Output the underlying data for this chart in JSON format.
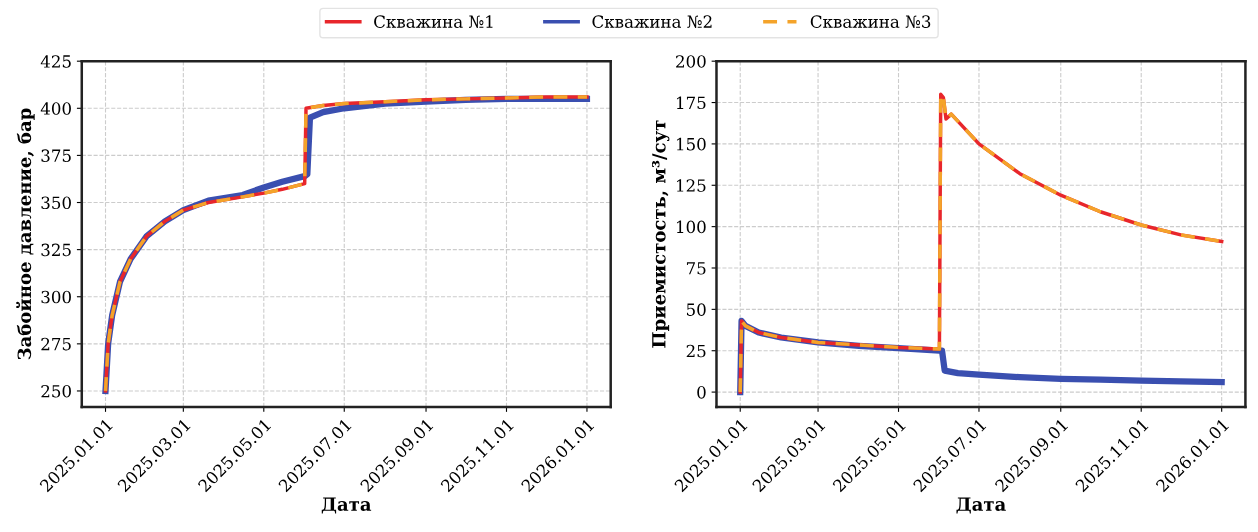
{
  "chart_data": [
    {
      "type": "line",
      "xlabel": "Дата",
      "ylabel": "Забойное давление, бар",
      "legend": "top",
      "grid": true,
      "xlim": [
        "2024-12-14",
        "2026-01-19"
      ],
      "ylim": [
        241.5,
        425
      ],
      "xticks": [
        {
          "value": "2025-01-01",
          "label": "2025.01.01"
        },
        {
          "value": "2025-03-01",
          "label": "2025.03.01"
        },
        {
          "value": "2025-05-01",
          "label": "2025.05.01"
        },
        {
          "value": "2025-07-01",
          "label": "2025.07.01"
        },
        {
          "value": "2025-09-01",
          "label": "2025.09.01"
        },
        {
          "value": "2025-11-01",
          "label": "2025.11.01"
        },
        {
          "value": "2026-01-01",
          "label": "2026.01.01"
        }
      ],
      "yticks": [
        250,
        275,
        300,
        325,
        350,
        375,
        400,
        425
      ],
      "series": [
        {
          "name": "Скважина №1",
          "color": "#e8262b",
          "line_style": "solid",
          "x": [
            "2025-01-01",
            "2025-01-03",
            "2025-01-06",
            "2025-01-12",
            "2025-01-20",
            "2025-02-01",
            "2025-02-15",
            "2025-03-01",
            "2025-03-20",
            "2025-04-15",
            "2025-05-01",
            "2025-05-15",
            "2025-06-01",
            "2025-06-02",
            "2025-06-15",
            "2025-07-01",
            "2025-08-01",
            "2025-09-01",
            "2025-10-01",
            "2025-11-01",
            "2025-12-01",
            "2026-01-01"
          ],
          "values": [
            250,
            275,
            290,
            308,
            320,
            332,
            340,
            346,
            350,
            353,
            355,
            357,
            360,
            400,
            401.5,
            402.5,
            403.5,
            404.5,
            405,
            405.5,
            406,
            406
          ]
        },
        {
          "name": "Скважина №2",
          "color": "#3a4fb0",
          "line_style": "solid",
          "x": [
            "2025-01-01",
            "2025-01-03",
            "2025-01-06",
            "2025-01-12",
            "2025-01-20",
            "2025-02-01",
            "2025-02-15",
            "2025-03-01",
            "2025-03-20",
            "2025-04-15",
            "2025-05-01",
            "2025-05-15",
            "2025-06-01",
            "2025-06-03",
            "2025-06-05",
            "2025-06-15",
            "2025-07-01",
            "2025-08-01",
            "2025-09-01",
            "2025-10-01",
            "2025-11-01",
            "2025-12-01",
            "2026-01-01"
          ],
          "values": [
            250,
            275,
            290,
            308,
            320,
            332,
            340,
            346,
            351,
            354,
            358,
            361,
            364,
            365,
            395,
            398,
            400,
            402.5,
            403.5,
            404.5,
            405,
            405,
            405
          ]
        },
        {
          "name": "Скважина №3",
          "color": "#f4a32a",
          "line_style": "dashed",
          "x": [
            "2025-01-01",
            "2025-01-03",
            "2025-01-06",
            "2025-01-12",
            "2025-01-20",
            "2025-02-01",
            "2025-02-15",
            "2025-03-01",
            "2025-03-20",
            "2025-04-15",
            "2025-05-01",
            "2025-05-15",
            "2025-06-01",
            "2025-06-02",
            "2025-06-15",
            "2025-07-01",
            "2025-08-01",
            "2025-09-01",
            "2025-10-01",
            "2025-11-01",
            "2025-12-01",
            "2026-01-01"
          ],
          "values": [
            250,
            275,
            290,
            308,
            320,
            332,
            340,
            346,
            350,
            353,
            355,
            357,
            360,
            400,
            401.5,
            402.5,
            403.5,
            404.5,
            405,
            405.5,
            406,
            406
          ]
        }
      ]
    },
    {
      "type": "line",
      "xlabel": "Дата",
      "ylabel": "Приемистость, м³/сут",
      "grid": true,
      "xlim": [
        "2024-12-14",
        "2026-01-19"
      ],
      "ylim": [
        -9,
        200
      ],
      "xticks": [
        {
          "value": "2025-01-01",
          "label": "2025.01.01"
        },
        {
          "value": "2025-03-01",
          "label": "2025.03.01"
        },
        {
          "value": "2025-05-01",
          "label": "2025.05.01"
        },
        {
          "value": "2025-07-01",
          "label": "2025.07.01"
        },
        {
          "value": "2025-09-01",
          "label": "2025.09.01"
        },
        {
          "value": "2025-11-01",
          "label": "2025.11.01"
        },
        {
          "value": "2026-01-01",
          "label": "2026.01.01"
        }
      ],
      "yticks": [
        0,
        25,
        50,
        75,
        100,
        125,
        150,
        175,
        200
      ],
      "series": [
        {
          "color": "#e8262b",
          "line_style": "solid",
          "x": [
            "2025-01-01",
            "2025-01-02",
            "2025-01-05",
            "2025-01-15",
            "2025-02-01",
            "2025-03-01",
            "2025-04-01",
            "2025-05-01",
            "2025-06-01",
            "2025-06-02",
            "2025-06-04",
            "2025-06-06",
            "2025-06-10",
            "2025-07-01",
            "2025-08-01",
            "2025-09-01",
            "2025-10-01",
            "2025-11-01",
            "2025-12-01",
            "2026-01-01"
          ],
          "values": [
            0,
            43,
            40,
            36,
            33,
            30,
            28.5,
            27,
            26,
            180,
            178,
            165,
            168,
            150,
            132,
            119,
            109,
            101,
            95,
            91
          ]
        },
        {
          "color": "#3a4fb0",
          "line_style": "solid",
          "x": [
            "2025-01-01",
            "2025-01-02",
            "2025-01-05",
            "2025-01-15",
            "2025-02-01",
            "2025-03-01",
            "2025-04-01",
            "2025-05-01",
            "2025-06-01",
            "2025-06-03",
            "2025-06-05",
            "2025-06-15",
            "2025-07-01",
            "2025-08-01",
            "2025-09-01",
            "2025-10-01",
            "2025-11-01",
            "2025-12-01",
            "2026-01-01"
          ],
          "values": [
            0,
            43,
            40,
            36,
            33,
            30,
            28,
            26.5,
            25,
            25,
            13,
            11.5,
            10.5,
            9,
            8,
            7.5,
            7,
            6.5,
            6
          ]
        },
        {
          "color": "#f4a32a",
          "line_style": "dashed",
          "x": [
            "2025-01-01",
            "2025-01-02",
            "2025-01-05",
            "2025-01-15",
            "2025-02-01",
            "2025-03-01",
            "2025-04-01",
            "2025-05-01",
            "2025-06-01",
            "2025-06-02",
            "2025-06-04",
            "2025-06-06",
            "2025-06-10",
            "2025-07-01",
            "2025-08-01",
            "2025-09-01",
            "2025-10-01",
            "2025-11-01",
            "2025-12-01",
            "2026-01-01"
          ],
          "values": [
            0,
            43,
            40,
            36,
            33,
            30,
            28.5,
            27,
            26,
            180,
            178,
            165,
            168,
            150,
            132,
            119,
            109,
            101,
            95,
            91
          ]
        }
      ]
    }
  ]
}
